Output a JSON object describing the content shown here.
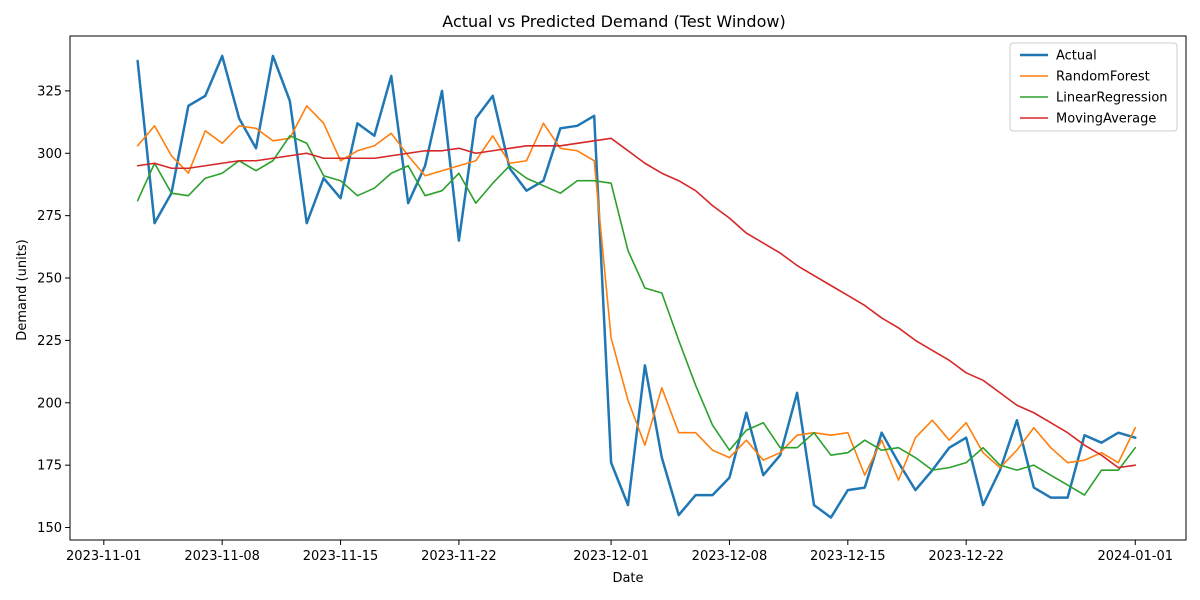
{
  "chart_data": {
    "type": "line",
    "title": "Actual vs Predicted Demand (Test Window)",
    "xlabel": "Date",
    "ylabel": "Demand (units)",
    "x_start": "2023-11-03",
    "x": [
      "2023-11-03",
      "2023-11-04",
      "2023-11-05",
      "2023-11-06",
      "2023-11-07",
      "2023-11-08",
      "2023-11-09",
      "2023-11-10",
      "2023-11-11",
      "2023-11-12",
      "2023-11-13",
      "2023-11-14",
      "2023-11-15",
      "2023-11-16",
      "2023-11-17",
      "2023-11-18",
      "2023-11-19",
      "2023-11-20",
      "2023-11-21",
      "2023-11-22",
      "2023-11-23",
      "2023-11-24",
      "2023-11-25",
      "2023-11-26",
      "2023-11-27",
      "2023-11-28",
      "2023-11-29",
      "2023-11-30",
      "2023-12-01",
      "2023-12-02",
      "2023-12-03",
      "2023-12-04",
      "2023-12-05",
      "2023-12-06",
      "2023-12-07",
      "2023-12-08",
      "2023-12-09",
      "2023-12-10",
      "2023-12-11",
      "2023-12-12",
      "2023-12-13",
      "2023-12-14",
      "2023-12-15",
      "2023-12-16",
      "2023-12-17",
      "2023-12-18",
      "2023-12-19",
      "2023-12-20",
      "2023-12-21",
      "2023-12-22",
      "2023-12-23",
      "2023-12-24",
      "2023-12-25",
      "2023-12-26",
      "2023-12-27",
      "2023-12-28",
      "2023-12-29",
      "2023-12-30",
      "2023-12-31",
      "2024-01-01"
    ],
    "x_ticks": [
      {
        "label": "2023-11-01",
        "date": "2023-11-01"
      },
      {
        "label": "2023-11-08",
        "date": "2023-11-08"
      },
      {
        "label": "2023-11-15",
        "date": "2023-11-15"
      },
      {
        "label": "2023-11-22",
        "date": "2023-11-22"
      },
      {
        "label": "2023-12-01",
        "date": "2023-12-01"
      },
      {
        "label": "2023-12-08",
        "date": "2023-12-08"
      },
      {
        "label": "2023-12-15",
        "date": "2023-12-15"
      },
      {
        "label": "2023-12-22",
        "date": "2023-12-22"
      },
      {
        "label": "2024-01-01",
        "date": "2024-01-01"
      }
    ],
    "y_ticks": [
      150,
      175,
      200,
      225,
      250,
      275,
      300,
      325
    ],
    "xlim": [
      "2023-10-30",
      "2024-01-04"
    ],
    "ylim": [
      145,
      347
    ],
    "grid": false,
    "legend_position": "top-right",
    "series": [
      {
        "name": "Actual",
        "color": "#1f77b4",
        "width": 2.5,
        "values": [
          337,
          272,
          284,
          319,
          323,
          339,
          314,
          302,
          339,
          321,
          272,
          290,
          282,
          312,
          307,
          331,
          280,
          295,
          325,
          265,
          314,
          323,
          294,
          285,
          289,
          310,
          311,
          315,
          176,
          159,
          215,
          178,
          155,
          163,
          163,
          170,
          196,
          171,
          179,
          204,
          159,
          154,
          165,
          166,
          188,
          176,
          165,
          173,
          182,
          186,
          159,
          173,
          193,
          166,
          162,
          162,
          187,
          184,
          188,
          186
        ]
      },
      {
        "name": "RandomForest",
        "color": "#ff7f0e",
        "width": 1.6,
        "values": [
          303,
          311,
          299,
          292,
          309,
          304,
          311,
          310,
          305,
          306,
          319,
          312,
          297,
          301,
          303,
          308,
          299,
          291,
          293,
          295,
          297,
          307,
          296,
          297,
          312,
          302,
          301,
          297,
          226,
          201,
          183,
          206,
          188,
          188,
          181,
          178,
          185,
          177,
          180,
          187,
          188,
          187,
          188,
          171,
          185,
          169,
          186,
          193,
          185,
          192,
          180,
          174,
          181,
          190,
          182,
          176,
          177,
          180,
          176,
          190
        ]
      },
      {
        "name": "LinearRegression",
        "color": "#2ca02c",
        "width": 1.6,
        "values": [
          281,
          296,
          284,
          283,
          290,
          292,
          297,
          293,
          297,
          307,
          304,
          291,
          289,
          283,
          286,
          292,
          295,
          283,
          285,
          292,
          280,
          288,
          295,
          290,
          287,
          284,
          289,
          289,
          288,
          261,
          246,
          244,
          225,
          207,
          191,
          181,
          189,
          192,
          182,
          182,
          188,
          179,
          180,
          185,
          181,
          182,
          178,
          173,
          174,
          176,
          182,
          175,
          173,
          175,
          171,
          167,
          163,
          173,
          173,
          182
        ]
      },
      {
        "name": "MovingAverage",
        "color": "#d62728",
        "width": 1.6,
        "values": [
          295,
          296,
          294,
          294,
          295,
          296,
          297,
          297,
          298,
          299,
          300,
          298,
          298,
          298,
          298,
          299,
          300,
          301,
          301,
          302,
          300,
          301,
          302,
          303,
          303,
          303,
          304,
          305,
          306,
          301,
          296,
          292,
          289,
          285,
          279,
          274,
          268,
          264,
          260,
          255,
          251,
          247,
          243,
          239,
          234,
          230,
          225,
          221,
          217,
          212,
          209,
          204,
          199,
          196,
          192,
          188,
          183,
          179,
          174,
          175
        ]
      }
    ]
  }
}
